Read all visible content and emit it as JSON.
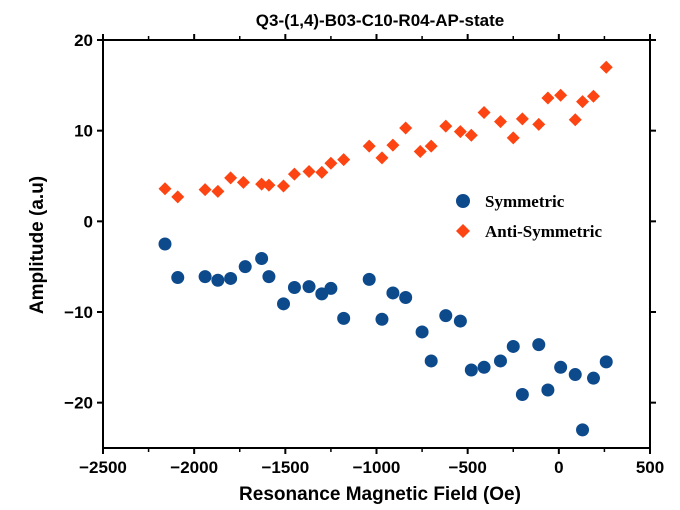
{
  "chart_data": {
    "type": "scatter",
    "title": "Q3-(1,4)-B03-C10-R04-AP-state",
    "xlabel": "Resonance Magnetic Field (Oe)",
    "ylabel": "Amplitude (a.u)",
    "xlim": [
      -2500,
      500
    ],
    "ylim": [
      -25,
      20
    ],
    "xticks": [
      -2500,
      -2000,
      -1500,
      -1000,
      -500,
      0,
      500
    ],
    "xtick_labels": [
      "−2500",
      "−2000",
      "−1500",
      "−1000",
      "−500",
      "0",
      "500"
    ],
    "yticks": [
      -20,
      -10,
      0,
      10,
      20
    ],
    "ytick_labels": [
      "−20",
      "−10",
      "0",
      "10",
      "20"
    ],
    "grid": false,
    "legend_position": "right",
    "series": [
      {
        "name": "Symmetric",
        "marker": "circle",
        "color": "#0d4a8c",
        "points": [
          [
            -2160,
            -2.5
          ],
          [
            -2090,
            -6.2
          ],
          [
            -1940,
            -6.1
          ],
          [
            -1870,
            -6.5
          ],
          [
            -1800,
            -6.3
          ],
          [
            -1720,
            -5.0
          ],
          [
            -1630,
            -4.1
          ],
          [
            -1590,
            -6.1
          ],
          [
            -1510,
            -9.1
          ],
          [
            -1450,
            -7.3
          ],
          [
            -1370,
            -7.2
          ],
          [
            -1300,
            -8.0
          ],
          [
            -1250,
            -7.4
          ],
          [
            -1180,
            -10.7
          ],
          [
            -1040,
            -6.4
          ],
          [
            -970,
            -10.8
          ],
          [
            -910,
            -7.9
          ],
          [
            -840,
            -8.4
          ],
          [
            -750,
            -12.2
          ],
          [
            -700,
            -15.4
          ],
          [
            -620,
            -10.4
          ],
          [
            -540,
            -11.0
          ],
          [
            -480,
            -16.4
          ],
          [
            -410,
            -16.1
          ],
          [
            -320,
            -15.4
          ],
          [
            -250,
            -13.8
          ],
          [
            -200,
            -19.1
          ],
          [
            -110,
            -13.6
          ],
          [
            -60,
            -18.6
          ],
          [
            10,
            -16.1
          ],
          [
            90,
            -16.9
          ],
          [
            130,
            -23.0
          ],
          [
            190,
            -17.3
          ],
          [
            260,
            -15.5
          ]
        ]
      },
      {
        "name": "Anti-Symmetric",
        "marker": "diamond",
        "color": "#fc4512",
        "points": [
          [
            -2160,
            3.6
          ],
          [
            -2090,
            2.7
          ],
          [
            -1940,
            3.5
          ],
          [
            -1870,
            3.3
          ],
          [
            -1800,
            4.8
          ],
          [
            -1730,
            4.3
          ],
          [
            -1630,
            4.1
          ],
          [
            -1590,
            4.0
          ],
          [
            -1510,
            3.9
          ],
          [
            -1450,
            5.2
          ],
          [
            -1370,
            5.5
          ],
          [
            -1300,
            5.4
          ],
          [
            -1250,
            6.4
          ],
          [
            -1180,
            6.8
          ],
          [
            -1040,
            8.3
          ],
          [
            -970,
            7.0
          ],
          [
            -910,
            8.4
          ],
          [
            -840,
            10.3
          ],
          [
            -760,
            7.7
          ],
          [
            -700,
            8.3
          ],
          [
            -620,
            10.5
          ],
          [
            -540,
            9.9
          ],
          [
            -480,
            9.5
          ],
          [
            -410,
            12.0
          ],
          [
            -320,
            11.0
          ],
          [
            -250,
            9.2
          ],
          [
            -200,
            11.3
          ],
          [
            -110,
            10.7
          ],
          [
            -60,
            13.6
          ],
          [
            10,
            13.9
          ],
          [
            90,
            11.2
          ],
          [
            130,
            13.2
          ],
          [
            190,
            13.8
          ],
          [
            260,
            17.0
          ]
        ]
      }
    ]
  }
}
